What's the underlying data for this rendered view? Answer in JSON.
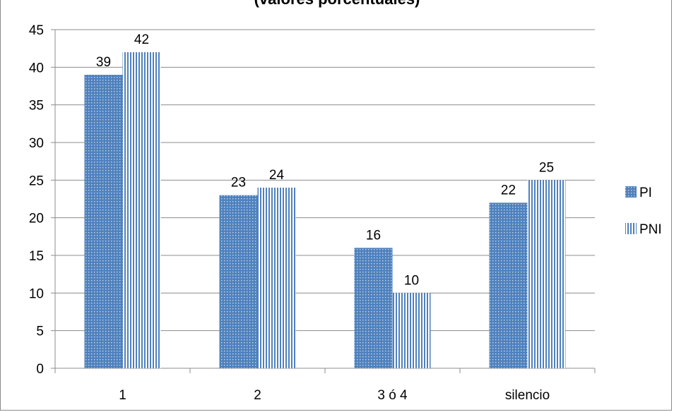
{
  "chart_data": {
    "type": "bar",
    "title": "(valores porcentuales)",
    "categories": [
      "1",
      "2",
      "3 ó 4",
      "silencio"
    ],
    "series": [
      {
        "name": "PI",
        "values": [
          39,
          23,
          16,
          22
        ],
        "color": "#4f81bd",
        "pattern": "dots"
      },
      {
        "name": "PNI",
        "values": [
          42,
          24,
          10,
          25
        ],
        "color": "#4f81bd",
        "pattern": "vertical-lines"
      }
    ],
    "ylim": [
      0,
      45
    ],
    "yticks": [
      0,
      5,
      10,
      15,
      20,
      25,
      30,
      35,
      40,
      45
    ],
    "grid": true,
    "legend": "right",
    "data_labels": true
  }
}
